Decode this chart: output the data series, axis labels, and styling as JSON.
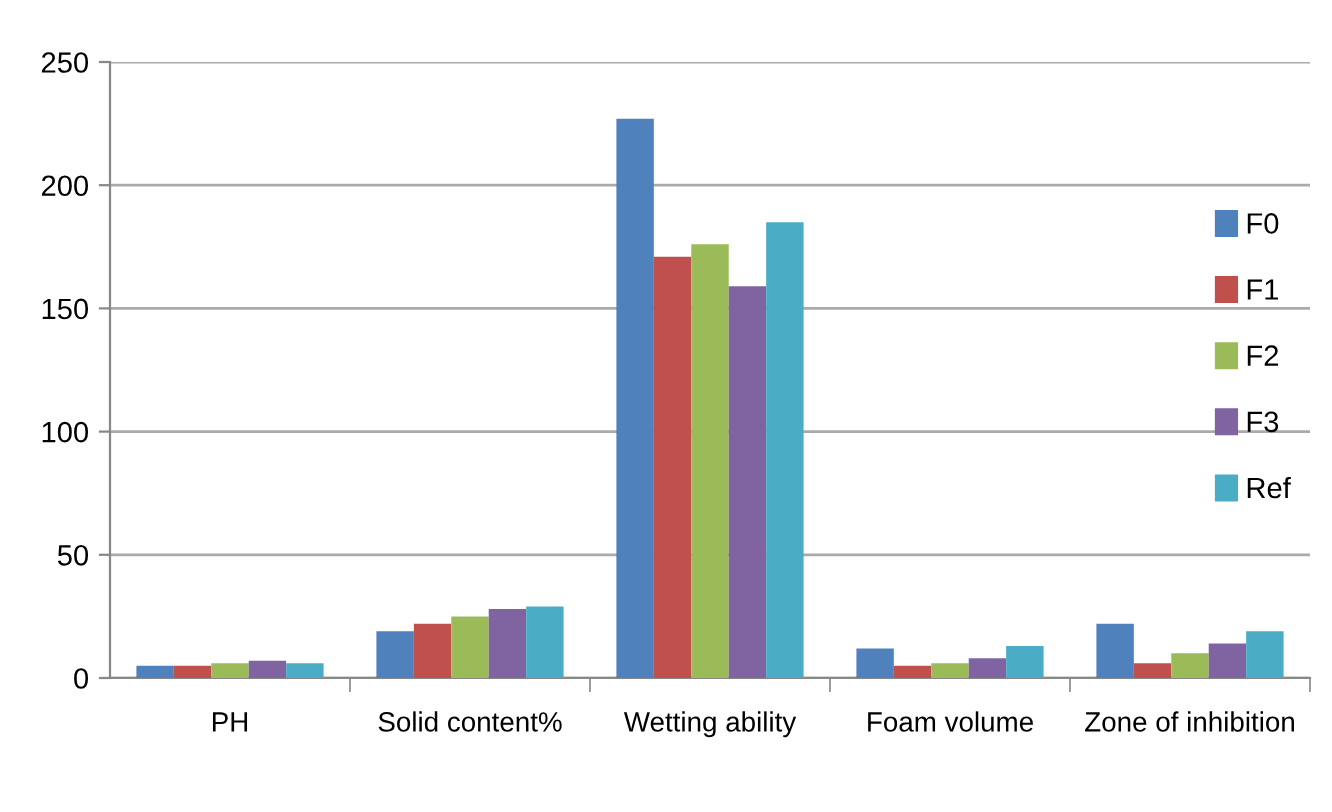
{
  "chart_data": {
    "type": "bar",
    "categories": [
      "PH",
      "Solid content%",
      "Wetting ability",
      "Foam volume",
      "Zone of inhibition"
    ],
    "series": [
      {
        "name": "F0",
        "color": "#4f81bd",
        "values": [
          5,
          19,
          227,
          12,
          22
        ]
      },
      {
        "name": "F1",
        "color": "#c0504d",
        "values": [
          5,
          22,
          171,
          5,
          6
        ]
      },
      {
        "name": "F2",
        "color": "#9bbb59",
        "values": [
          6,
          25,
          176,
          6,
          10
        ]
      },
      {
        "name": "F3",
        "color": "#8064a2",
        "values": [
          7,
          28,
          159,
          8,
          14
        ]
      },
      {
        "name": "Ref",
        "color": "#4bacc6",
        "values": [
          6,
          29,
          185,
          13,
          19
        ]
      }
    ],
    "ylim": [
      0,
      250
    ],
    "yticks": [
      0,
      50,
      100,
      150,
      200,
      250
    ],
    "grid": "y",
    "legend": "right"
  }
}
